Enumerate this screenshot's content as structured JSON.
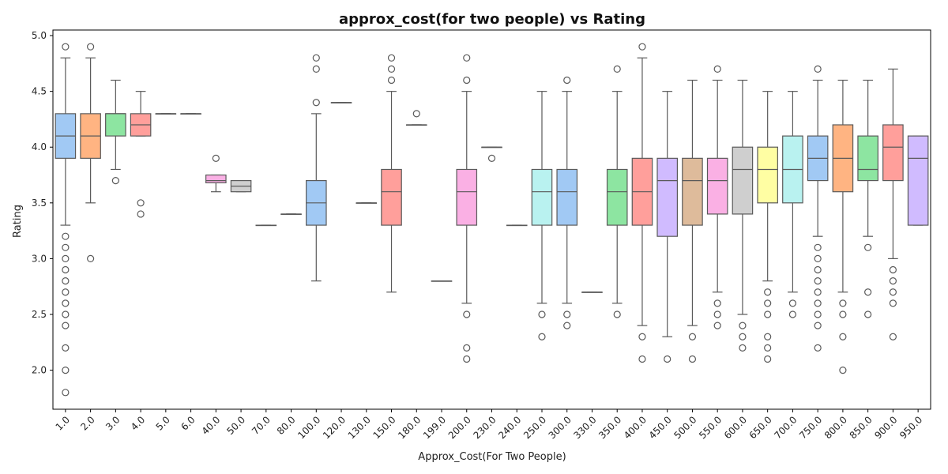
{
  "chart_data": {
    "type": "box",
    "title": "approx_cost(for two people) vs Rating",
    "xlabel": "Approx_Cost(For Two People)",
    "ylabel": "Rating",
    "ylim": [
      1.65,
      5.05
    ],
    "yticks": [
      "2.0",
      "2.5",
      "3.0",
      "3.5",
      "4.0",
      "4.5",
      "5.0"
    ],
    "grid": false,
    "legend": "none",
    "palette": [
      "#a1c9f4",
      "#ffb482",
      "#8de5a1",
      "#ff9f9b",
      "#d0bbff",
      "#debb9b",
      "#fab0e4",
      "#cfcfcf",
      "#fffea3",
      "#b9f2f0"
    ],
    "categories": [
      "1.0",
      "2.0",
      "3.0",
      "4.0",
      "5.0",
      "6.0",
      "40.0",
      "50.0",
      "70.0",
      "80.0",
      "100.0",
      "120.0",
      "130.0",
      "150.0",
      "180.0",
      "199.0",
      "200.0",
      "230.0",
      "240.0",
      "250.0",
      "300.0",
      "330.0",
      "350.0",
      "400.0",
      "450.0",
      "500.0",
      "550.0",
      "600.0",
      "650.0",
      "700.0",
      "750.0",
      "800.0",
      "850.0",
      "900.0",
      "950.0"
    ],
    "boxes": [
      {
        "category": "1.0",
        "whislo": 3.3,
        "q1": 3.9,
        "med": 4.1,
        "q3": 4.3,
        "whishi": 4.8,
        "outliers": [
          4.9,
          3.2,
          3.1,
          3.0,
          2.9,
          2.8,
          2.7,
          2.6,
          2.5,
          2.4,
          2.2,
          2.0,
          1.8
        ]
      },
      {
        "category": "2.0",
        "whislo": 3.5,
        "q1": 3.9,
        "med": 4.1,
        "q3": 4.3,
        "whishi": 4.8,
        "outliers": [
          4.9,
          3.0
        ]
      },
      {
        "category": "3.0",
        "whislo": 3.8,
        "q1": 4.1,
        "med": 4.3,
        "q3": 4.3,
        "whishi": 4.6,
        "outliers": [
          3.7
        ]
      },
      {
        "category": "4.0",
        "whislo": 4.1,
        "q1": 4.1,
        "med": 4.2,
        "q3": 4.3,
        "whishi": 4.5,
        "outliers": [
          3.5,
          3.4
        ]
      },
      {
        "category": "5.0",
        "whislo": 4.3,
        "q1": 4.3,
        "med": 4.3,
        "q3": 4.3,
        "whishi": 4.3,
        "outliers": []
      },
      {
        "category": "6.0",
        "whislo": 4.3,
        "q1": 4.3,
        "med": 4.3,
        "q3": 4.3,
        "whishi": 4.3,
        "outliers": []
      },
      {
        "category": "40.0",
        "whislo": 3.6,
        "q1": 3.68,
        "med": 3.7,
        "q3": 3.75,
        "whishi": 3.75,
        "outliers": [
          3.9
        ]
      },
      {
        "category": "50.0",
        "whislo": 3.6,
        "q1": 3.6,
        "med": 3.65,
        "q3": 3.7,
        "whishi": 3.7,
        "outliers": []
      },
      {
        "category": "70.0",
        "whislo": 3.3,
        "q1": 3.3,
        "med": 3.3,
        "q3": 3.3,
        "whishi": 3.3,
        "outliers": []
      },
      {
        "category": "80.0",
        "whislo": 3.4,
        "q1": 3.4,
        "med": 3.4,
        "q3": 3.4,
        "whishi": 3.4,
        "outliers": []
      },
      {
        "category": "100.0",
        "whislo": 2.8,
        "q1": 3.3,
        "med": 3.5,
        "q3": 3.7,
        "whishi": 4.3,
        "outliers": [
          4.8,
          4.7,
          4.4
        ]
      },
      {
        "category": "120.0",
        "whislo": 4.4,
        "q1": 4.4,
        "med": 4.4,
        "q3": 4.4,
        "whishi": 4.4,
        "outliers": []
      },
      {
        "category": "130.0",
        "whislo": 3.5,
        "q1": 3.5,
        "med": 3.5,
        "q3": 3.5,
        "whishi": 3.5,
        "outliers": []
      },
      {
        "category": "150.0",
        "whislo": 2.7,
        "q1": 3.3,
        "med": 3.6,
        "q3": 3.8,
        "whishi": 4.5,
        "outliers": [
          4.8,
          4.7,
          4.6
        ]
      },
      {
        "category": "180.0",
        "whislo": 4.2,
        "q1": 4.2,
        "med": 4.2,
        "q3": 4.2,
        "whishi": 4.2,
        "outliers": [
          4.3
        ]
      },
      {
        "category": "199.0",
        "whislo": 2.8,
        "q1": 2.8,
        "med": 2.8,
        "q3": 2.8,
        "whishi": 2.8,
        "outliers": []
      },
      {
        "category": "200.0",
        "whislo": 2.6,
        "q1": 3.3,
        "med": 3.6,
        "q3": 3.8,
        "whishi": 4.5,
        "outliers": [
          4.8,
          4.6,
          2.5,
          2.2,
          2.1
        ]
      },
      {
        "category": "230.0",
        "whislo": 4.0,
        "q1": 4.0,
        "med": 4.0,
        "q3": 4.0,
        "whishi": 4.0,
        "outliers": [
          3.9
        ]
      },
      {
        "category": "240.0",
        "whislo": 3.3,
        "q1": 3.3,
        "med": 3.3,
        "q3": 3.3,
        "whishi": 3.3,
        "outliers": []
      },
      {
        "category": "250.0",
        "whislo": 2.6,
        "q1": 3.3,
        "med": 3.6,
        "q3": 3.8,
        "whishi": 4.5,
        "outliers": [
          2.5,
          2.3
        ]
      },
      {
        "category": "300.0",
        "whislo": 2.6,
        "q1": 3.3,
        "med": 3.6,
        "q3": 3.8,
        "whishi": 4.5,
        "outliers": [
          4.6,
          2.5,
          2.4
        ]
      },
      {
        "category": "330.0",
        "whislo": 2.7,
        "q1": 2.7,
        "med": 2.7,
        "q3": 2.7,
        "whishi": 2.7,
        "outliers": []
      },
      {
        "category": "350.0",
        "whislo": 2.6,
        "q1": 3.3,
        "med": 3.6,
        "q3": 3.8,
        "whishi": 4.5,
        "outliers": [
          4.7,
          2.5
        ]
      },
      {
        "category": "400.0",
        "whislo": 2.4,
        "q1": 3.3,
        "med": 3.6,
        "q3": 3.9,
        "whishi": 4.8,
        "outliers": [
          4.9,
          2.3,
          2.1
        ]
      },
      {
        "category": "450.0",
        "whislo": 2.3,
        "q1": 3.2,
        "med": 3.7,
        "q3": 3.9,
        "whishi": 4.5,
        "outliers": [
          2.1
        ]
      },
      {
        "category": "500.0",
        "whislo": 2.4,
        "q1": 3.3,
        "med": 3.7,
        "q3": 3.9,
        "whishi": 4.6,
        "outliers": [
          2.3,
          2.1
        ]
      },
      {
        "category": "550.0",
        "whislo": 2.7,
        "q1": 3.4,
        "med": 3.7,
        "q3": 3.9,
        "whishi": 4.6,
        "outliers": [
          4.7,
          2.6,
          2.5,
          2.4
        ]
      },
      {
        "category": "600.0",
        "whislo": 2.5,
        "q1": 3.4,
        "med": 3.8,
        "q3": 4.0,
        "whishi": 4.6,
        "outliers": [
          2.4,
          2.3,
          2.2
        ]
      },
      {
        "category": "650.0",
        "whislo": 2.8,
        "q1": 3.5,
        "med": 3.8,
        "q3": 4.0,
        "whishi": 4.5,
        "outliers": [
          2.7,
          2.6,
          2.5,
          2.3,
          2.2,
          2.1
        ]
      },
      {
        "category": "700.0",
        "whislo": 2.7,
        "q1": 3.5,
        "med": 3.8,
        "q3": 4.1,
        "whishi": 4.5,
        "outliers": [
          2.6,
          2.5
        ]
      },
      {
        "category": "750.0",
        "whislo": 3.2,
        "q1": 3.7,
        "med": 3.9,
        "q3": 4.1,
        "whishi": 4.6,
        "outliers": [
          4.7,
          3.1,
          3.0,
          2.9,
          2.8,
          2.7,
          2.6,
          2.5,
          2.4,
          2.2
        ]
      },
      {
        "category": "800.0",
        "whislo": 2.7,
        "q1": 3.6,
        "med": 3.9,
        "q3": 4.2,
        "whishi": 4.6,
        "outliers": [
          2.6,
          2.5,
          2.3,
          2.0
        ]
      },
      {
        "category": "850.0",
        "whislo": 3.2,
        "q1": 3.7,
        "med": 3.8,
        "q3": 4.1,
        "whishi": 4.6,
        "outliers": [
          3.1,
          2.7,
          2.5
        ]
      },
      {
        "category": "900.0",
        "whislo": 3.0,
        "q1": 3.7,
        "med": 4.0,
        "q3": 4.2,
        "whishi": 4.7,
        "outliers": [
          2.9,
          2.8,
          2.7,
          2.6,
          2.3
        ]
      },
      {
        "category": "950.0",
        "whislo": 3.3,
        "q1": 3.3,
        "med": 3.9,
        "q3": 4.1,
        "whishi": 4.1,
        "outliers": []
      }
    ]
  }
}
